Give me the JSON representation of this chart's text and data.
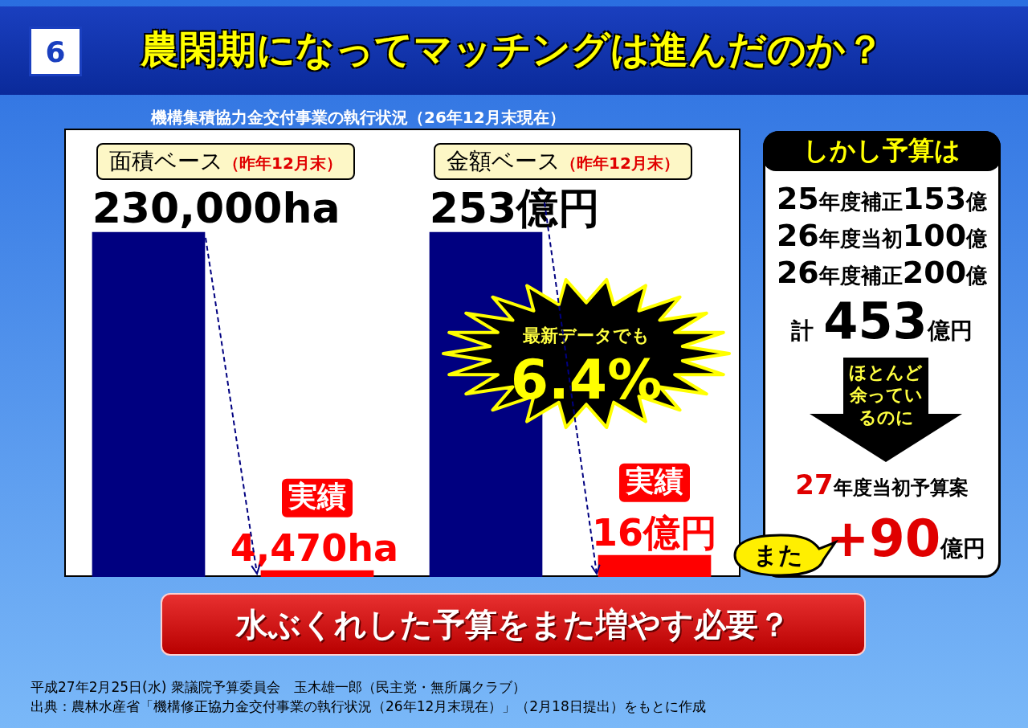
{
  "chart_data": [
    {
      "type": "other",
      "title": "農閑期になってマッチングは進んだのか？",
      "subtitle": "機構集積協力金交付事業の執行状況（26年12月末現在）",
      "annotations": [
        "6",
        "水ぶくれした予算をまた増やす必要？",
        "平成27年2月25日(水) 衆議院予算委員会　玉木雄一郎（民主党・無所属クラブ）",
        "出典：農林水産省「機構修正協力金交付事業の執行状況（26年12月末現在）」（2月18日提出）をもとに作成"
      ]
    },
    {
      "type": "bar",
      "title": "面積ベース",
      "subtitle": "（昨年12月末）",
      "categories": [
        null,
        "実績"
      ],
      "values": [
        230000,
        4470
      ],
      "value_labels": [
        "230,000ha",
        "4,470ha"
      ],
      "colors": [
        "#000080",
        "#ff0000"
      ]
    },
    {
      "type": "bar",
      "title": "金額ベース",
      "subtitle": "（昨年12月末）",
      "categories": [
        null,
        "実績"
      ],
      "values": [
        253,
        16
      ],
      "value_labels": [
        "253億円",
        "16億円"
      ],
      "colors": [
        "#000080",
        "#ff0000"
      ],
      "annotations": [
        "最新データでも",
        "6.4%"
      ]
    },
    {
      "type": "other",
      "title": "しかし予算は",
      "annotations": [
        "25年度補正153億",
        "26年度当初100億",
        "26年度補正200億",
        "計453億円",
        "ほとんど余っているのに",
        "27年度当初予算案",
        "+90億円",
        "また"
      ]
    }
  ]
}
